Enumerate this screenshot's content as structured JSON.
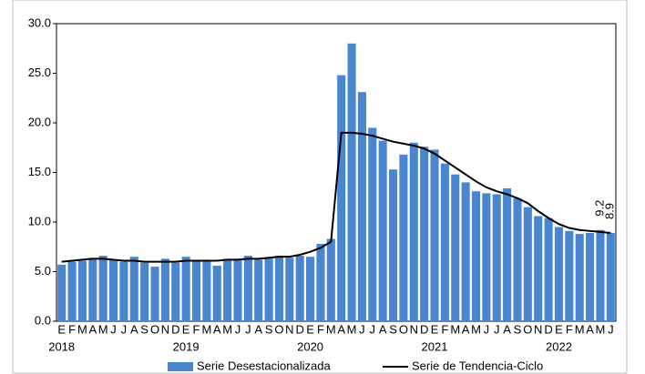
{
  "chart_data": {
    "type": "bar-line",
    "categories": [
      "E",
      "F",
      "M",
      "A",
      "M",
      "J",
      "J",
      "A",
      "S",
      "O",
      "N",
      "D",
      "E",
      "F",
      "M",
      "A",
      "M",
      "J",
      "J",
      "A",
      "S",
      "O",
      "N",
      "D",
      "E",
      "F",
      "M",
      "A",
      "M",
      "J",
      "J",
      "A",
      "S",
      "O",
      "N",
      "D",
      "E",
      "F",
      "M",
      "A",
      "M",
      "J",
      "J",
      "A",
      "S",
      "O",
      "N",
      "D",
      "E",
      "F",
      "M",
      "A",
      "M",
      "J"
    ],
    "year_labels": [
      "2018",
      "2019",
      "2020",
      "2021",
      "2022"
    ],
    "series": [
      {
        "name": "Serie Desestacionalizada",
        "type": "bar",
        "color": "#4a86d0",
        "values": [
          5.7,
          6.0,
          6.1,
          6.4,
          6.6,
          6.2,
          6.0,
          6.5,
          5.9,
          5.5,
          6.3,
          5.9,
          6.5,
          6.1,
          6.2,
          5.6,
          6.3,
          6.3,
          6.6,
          6.2,
          6.4,
          6.6,
          6.4,
          6.6,
          6.5,
          7.8,
          8.3,
          24.8,
          28.0,
          23.1,
          19.5,
          18.2,
          15.3,
          16.8,
          18.0,
          17.6,
          17.3,
          15.9,
          14.8,
          14.0,
          13.1,
          12.9,
          12.8,
          13.4,
          12.4,
          11.5,
          10.6,
          10.4,
          9.5,
          9.1,
          8.8,
          8.9,
          9.2,
          8.9
        ],
        "value_labels": [
          null,
          null,
          null,
          null,
          null,
          null,
          null,
          null,
          null,
          null,
          null,
          null,
          null,
          null,
          null,
          null,
          null,
          null,
          null,
          null,
          null,
          null,
          null,
          null,
          null,
          null,
          null,
          null,
          null,
          null,
          null,
          null,
          null,
          null,
          null,
          null,
          null,
          null,
          null,
          null,
          null,
          null,
          null,
          null,
          null,
          null,
          null,
          null,
          null,
          null,
          null,
          null,
          "9.2",
          "8.9"
        ]
      },
      {
        "name": "Serie de Tendencia-Ciclo",
        "type": "line",
        "color": "#000000",
        "values": [
          6.0,
          6.1,
          6.2,
          6.3,
          6.3,
          6.2,
          6.1,
          6.1,
          6.0,
          6.0,
          6.0,
          6.0,
          6.1,
          6.1,
          6.1,
          6.1,
          6.2,
          6.2,
          6.3,
          6.3,
          6.4,
          6.5,
          6.5,
          6.7,
          7.0,
          7.4,
          8.0,
          19.0,
          19.0,
          18.9,
          18.7,
          18.4,
          18.1,
          17.9,
          17.7,
          17.4,
          16.9,
          16.2,
          15.5,
          14.8,
          14.1,
          13.5,
          13.1,
          12.8,
          12.4,
          11.9,
          11.1,
          10.4,
          9.8,
          9.4,
          9.2,
          9.1,
          9.0,
          8.9
        ]
      }
    ],
    "ylim": [
      0,
      30
    ],
    "yticks": [
      {
        "value": 0,
        "label": "0.0"
      },
      {
        "value": 5,
        "label": "5.0"
      },
      {
        "value": 10,
        "label": "10.0"
      },
      {
        "value": 15,
        "label": "15.0"
      },
      {
        "value": 20,
        "label": "20.0"
      },
      {
        "value": 25,
        "label": "25.0"
      },
      {
        "value": 30,
        "label": "30.0"
      }
    ],
    "legend": "bottom"
  }
}
